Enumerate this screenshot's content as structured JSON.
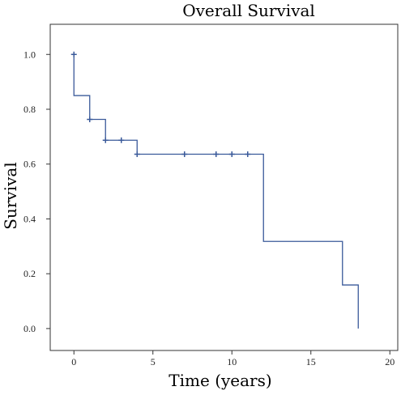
{
  "chart_data": {
    "type": "line",
    "title": "Overall Survival",
    "xlabel": "Time (years)",
    "ylabel": "Survival",
    "xlim": [
      -1.5,
      20.5
    ],
    "ylim": [
      -0.08,
      1.11
    ],
    "x_ticks": [
      0,
      5,
      10,
      15,
      20
    ],
    "x_tick_labels": [
      "0",
      "5",
      "10",
      "15",
      "20"
    ],
    "y_ticks": [
      0.0,
      0.2,
      0.4,
      0.6,
      0.8,
      1.0
    ],
    "y_tick_labels": [
      "0.0",
      "0.2",
      "0.4",
      "0.6",
      "0.8",
      "1.0"
    ],
    "grid": false,
    "series": [
      {
        "line_color": "#3a5a9a",
        "step_points": [
          {
            "x": 0,
            "y": 1.0
          },
          {
            "x": 0,
            "y": 0.85
          },
          {
            "x": 1,
            "y": 0.85
          },
          {
            "x": 1,
            "y": 0.763
          },
          {
            "x": 2,
            "y": 0.763
          },
          {
            "x": 2,
            "y": 0.687
          },
          {
            "x": 4,
            "y": 0.687
          },
          {
            "x": 4,
            "y": 0.636
          },
          {
            "x": 12,
            "y": 0.636
          },
          {
            "x": 12,
            "y": 0.318
          },
          {
            "x": 17,
            "y": 0.318
          },
          {
            "x": 17,
            "y": 0.159
          },
          {
            "x": 18,
            "y": 0.159
          },
          {
            "x": 18,
            "y": 0.0
          }
        ],
        "censored": [
          {
            "x": 0,
            "y": 1.0
          },
          {
            "x": 1,
            "y": 0.763
          },
          {
            "x": 2,
            "y": 0.687
          },
          {
            "x": 3,
            "y": 0.687
          },
          {
            "x": 4,
            "y": 0.636
          },
          {
            "x": 7,
            "y": 0.636
          },
          {
            "x": 9,
            "y": 0.636
          },
          {
            "x": 10,
            "y": 0.636
          },
          {
            "x": 11,
            "y": 0.636
          }
        ]
      }
    ]
  }
}
